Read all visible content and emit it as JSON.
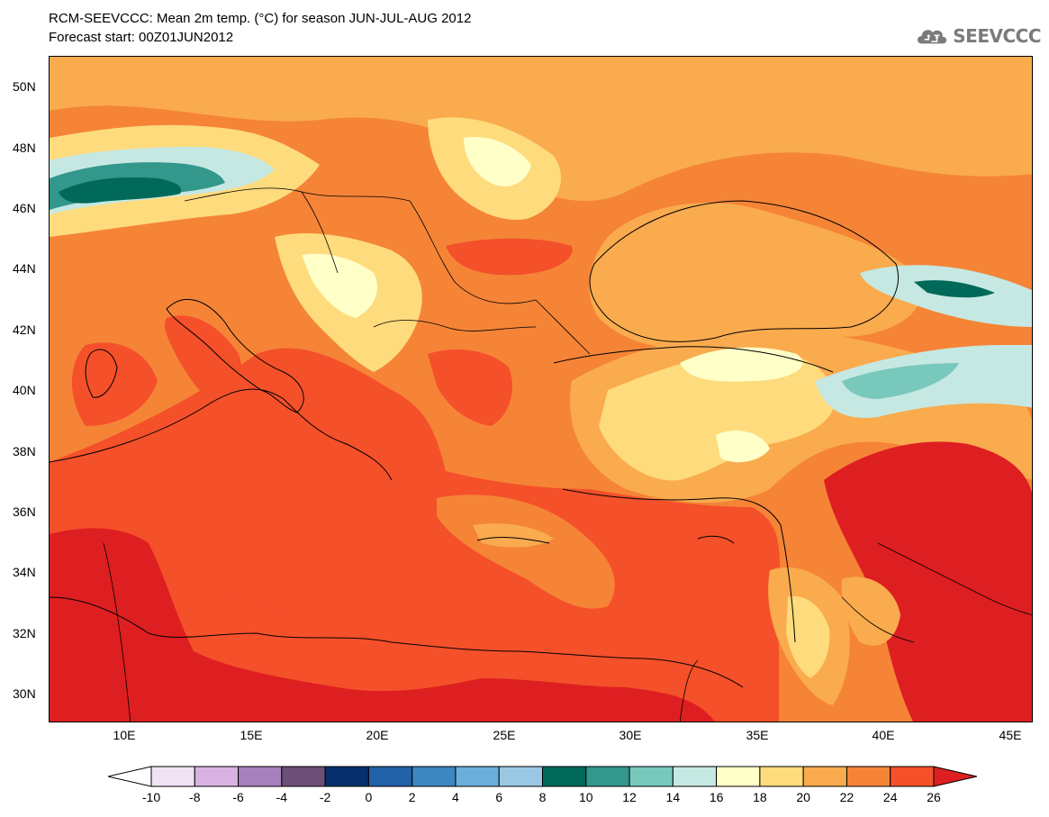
{
  "title": {
    "line1": "RCM-SEEVCCC: Mean 2m temp. (°C) for season JUN-JUL-AUG 2012",
    "line2": "Forecast start: 00Z01JUN2012"
  },
  "logo": {
    "text": "SEEVCCC",
    "icon": "cloud-logo-icon"
  },
  "axes": {
    "lat_labels": [
      "50N",
      "48N",
      "46N",
      "44N",
      "42N",
      "40N",
      "38N",
      "36N",
      "34N",
      "32N",
      "30N"
    ],
    "lon_labels": [
      "10E",
      "15E",
      "20E",
      "25E",
      "30E",
      "35E",
      "40E",
      "45E"
    ]
  },
  "colorbar": {
    "labels": [
      "-10",
      "-8",
      "-6",
      "-4",
      "-2",
      "0",
      "2",
      "4",
      "6",
      "8",
      "10",
      "12",
      "14",
      "16",
      "18",
      "20",
      "22",
      "24",
      "26"
    ],
    "colors": [
      "#ffffff",
      "#efe3f4",
      "#d8b3e2",
      "#a681bd",
      "#6c4f76",
      "#062f6b",
      "#2260a8",
      "#3d86c0",
      "#6aafd9",
      "#9ac8e4",
      "#00695a",
      "#33978c",
      "#79c8bc",
      "#c6e8e2",
      "#ffffc8",
      "#fedb7c",
      "#f9ab4e",
      "#f58437",
      "#f4502a",
      "#de1f21"
    ]
  }
}
